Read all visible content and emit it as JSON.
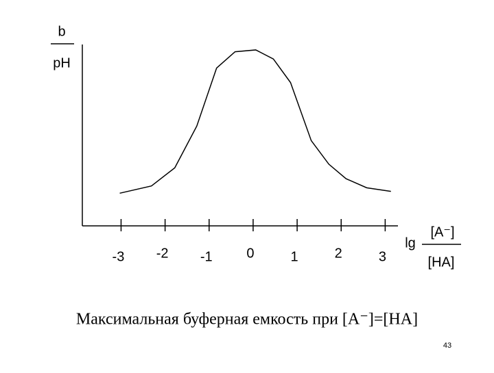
{
  "chart_data": {
    "type": "line",
    "y_label_numerator": "b",
    "y_label_denominator": "pH",
    "x_label_prefix": "lg",
    "x_label_numerator": "[A⁻]",
    "x_label_denominator": "[HA]",
    "x": [
      -3.03,
      -2.31,
      -1.78,
      -1.28,
      -0.83,
      -0.41,
      0.06,
      0.46,
      0.85,
      1.32,
      1.72,
      2.11,
      2.58,
      3.13
    ],
    "values": [
      0.18,
      0.22,
      0.32,
      0.55,
      0.87,
      0.96,
      0.97,
      0.92,
      0.79,
      0.47,
      0.34,
      0.26,
      0.21,
      0.19
    ],
    "color": "#000000",
    "xlim": [
      -3.88,
      3.29
    ],
    "ylim": [
      0,
      1
    ],
    "xticks": [
      -3,
      -2,
      -1,
      0,
      1,
      2,
      3
    ]
  },
  "caption": "Максимальная буферная емкость при [A⁻]=[HA]",
  "page_number": "43"
}
